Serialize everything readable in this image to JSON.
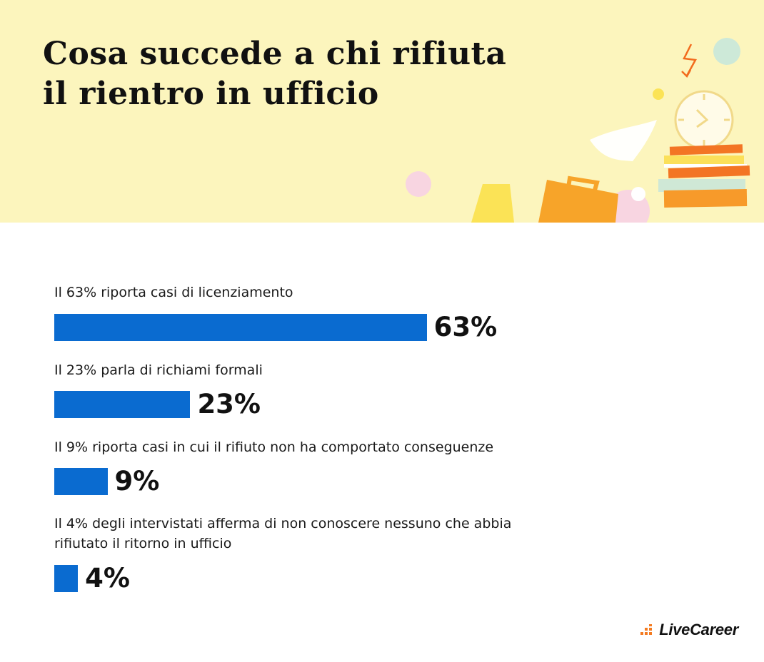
{
  "title_lines": [
    "Cosa succede a chi rifiuta",
    "il rientro in ufficio"
  ],
  "brand": "LiveCareer",
  "colors": {
    "header_bg": "#fcf5bd",
    "bar": "#0a6bd0",
    "brand_accent": "#f47a20"
  },
  "chart_data": {
    "type": "bar",
    "orientation": "horizontal",
    "categories": [
      "Il 63% riporta casi di licenziamento",
      "Il 23% parla di richiami formali",
      "Il 9% riporta casi in cui il rifiuto non ha comportato conseguenze",
      "Il 4% degli intervistati afferma di non conoscere nessuno che abbia rifiutato il ritorno in ufficio"
    ],
    "values": [
      63,
      23,
      9,
      4
    ],
    "value_labels": [
      "63%",
      "23%",
      "9%",
      "4%"
    ],
    "unit": "%"
  }
}
